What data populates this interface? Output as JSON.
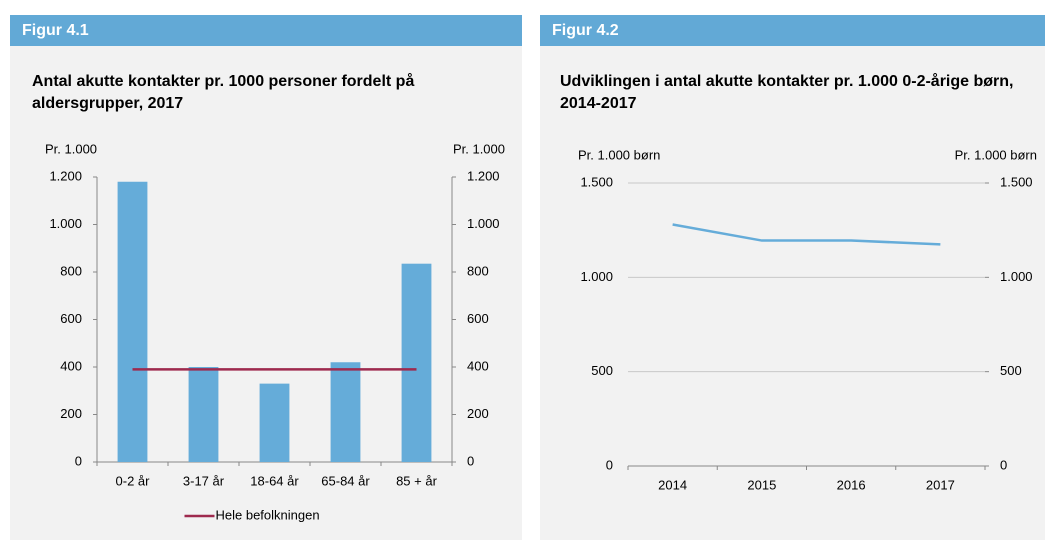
{
  "chart_data": [
    {
      "type": "bar",
      "figure_label": "Figur 4.1",
      "title": "Antal akutte kontakter pr. 1000 personer fordelt på aldersgrupper, 2017",
      "y_label": "Pr. 1.000",
      "y2_label": "Pr. 1.000",
      "categories": [
        "0-2 år",
        "3-17 år",
        "18-64 år",
        "65-84 år",
        "85 + år"
      ],
      "values": [
        1180,
        400,
        330,
        420,
        835
      ],
      "color": "#65acd9",
      "series": [
        {
          "name": "Hele befolkningen",
          "color": "#9e2a4e",
          "values": [
            390,
            390,
            390,
            390,
            390
          ]
        }
      ],
      "ylim": [
        0,
        1200
      ],
      "yticks": [
        0,
        200,
        400,
        600,
        800,
        {
          "value": 1000,
          "label": "1.000"
        },
        {
          "value": 1200,
          "label": "1.200"
        }
      ],
      "y2lim": [
        0,
        1200
      ],
      "y2ticks": [
        0,
        200,
        400,
        600,
        800,
        {
          "value": 1000,
          "label": "1.000"
        },
        {
          "value": 1200,
          "label": "1.200"
        }
      ],
      "grid": false,
      "legend": "bottom"
    },
    {
      "type": "line",
      "figure_label": "Figur 4.2",
      "title": "Udviklingen i antal akutte kontakter pr. 1.000 0-2-årige børn, 2014-2017",
      "y_label": "Pr. 1.000 børn",
      "y2_label": "Pr. 1.000 børn",
      "categories": [
        "2014",
        "2015",
        "2016",
        "2017"
      ],
      "values": [
        1280,
        1195,
        1195,
        1175
      ],
      "color": "#65acd9",
      "ylim": [
        0,
        1500
      ],
      "yticks": [
        0,
        500,
        {
          "value": 1000,
          "label": "1.000"
        },
        {
          "value": 1500,
          "label": "1.500"
        }
      ],
      "y2lim": [
        0,
        1500
      ],
      "y2ticks": [
        0,
        500,
        {
          "value": 1000,
          "label": "1.000"
        },
        {
          "value": 1500,
          "label": "1.500"
        }
      ],
      "grid": true
    }
  ]
}
